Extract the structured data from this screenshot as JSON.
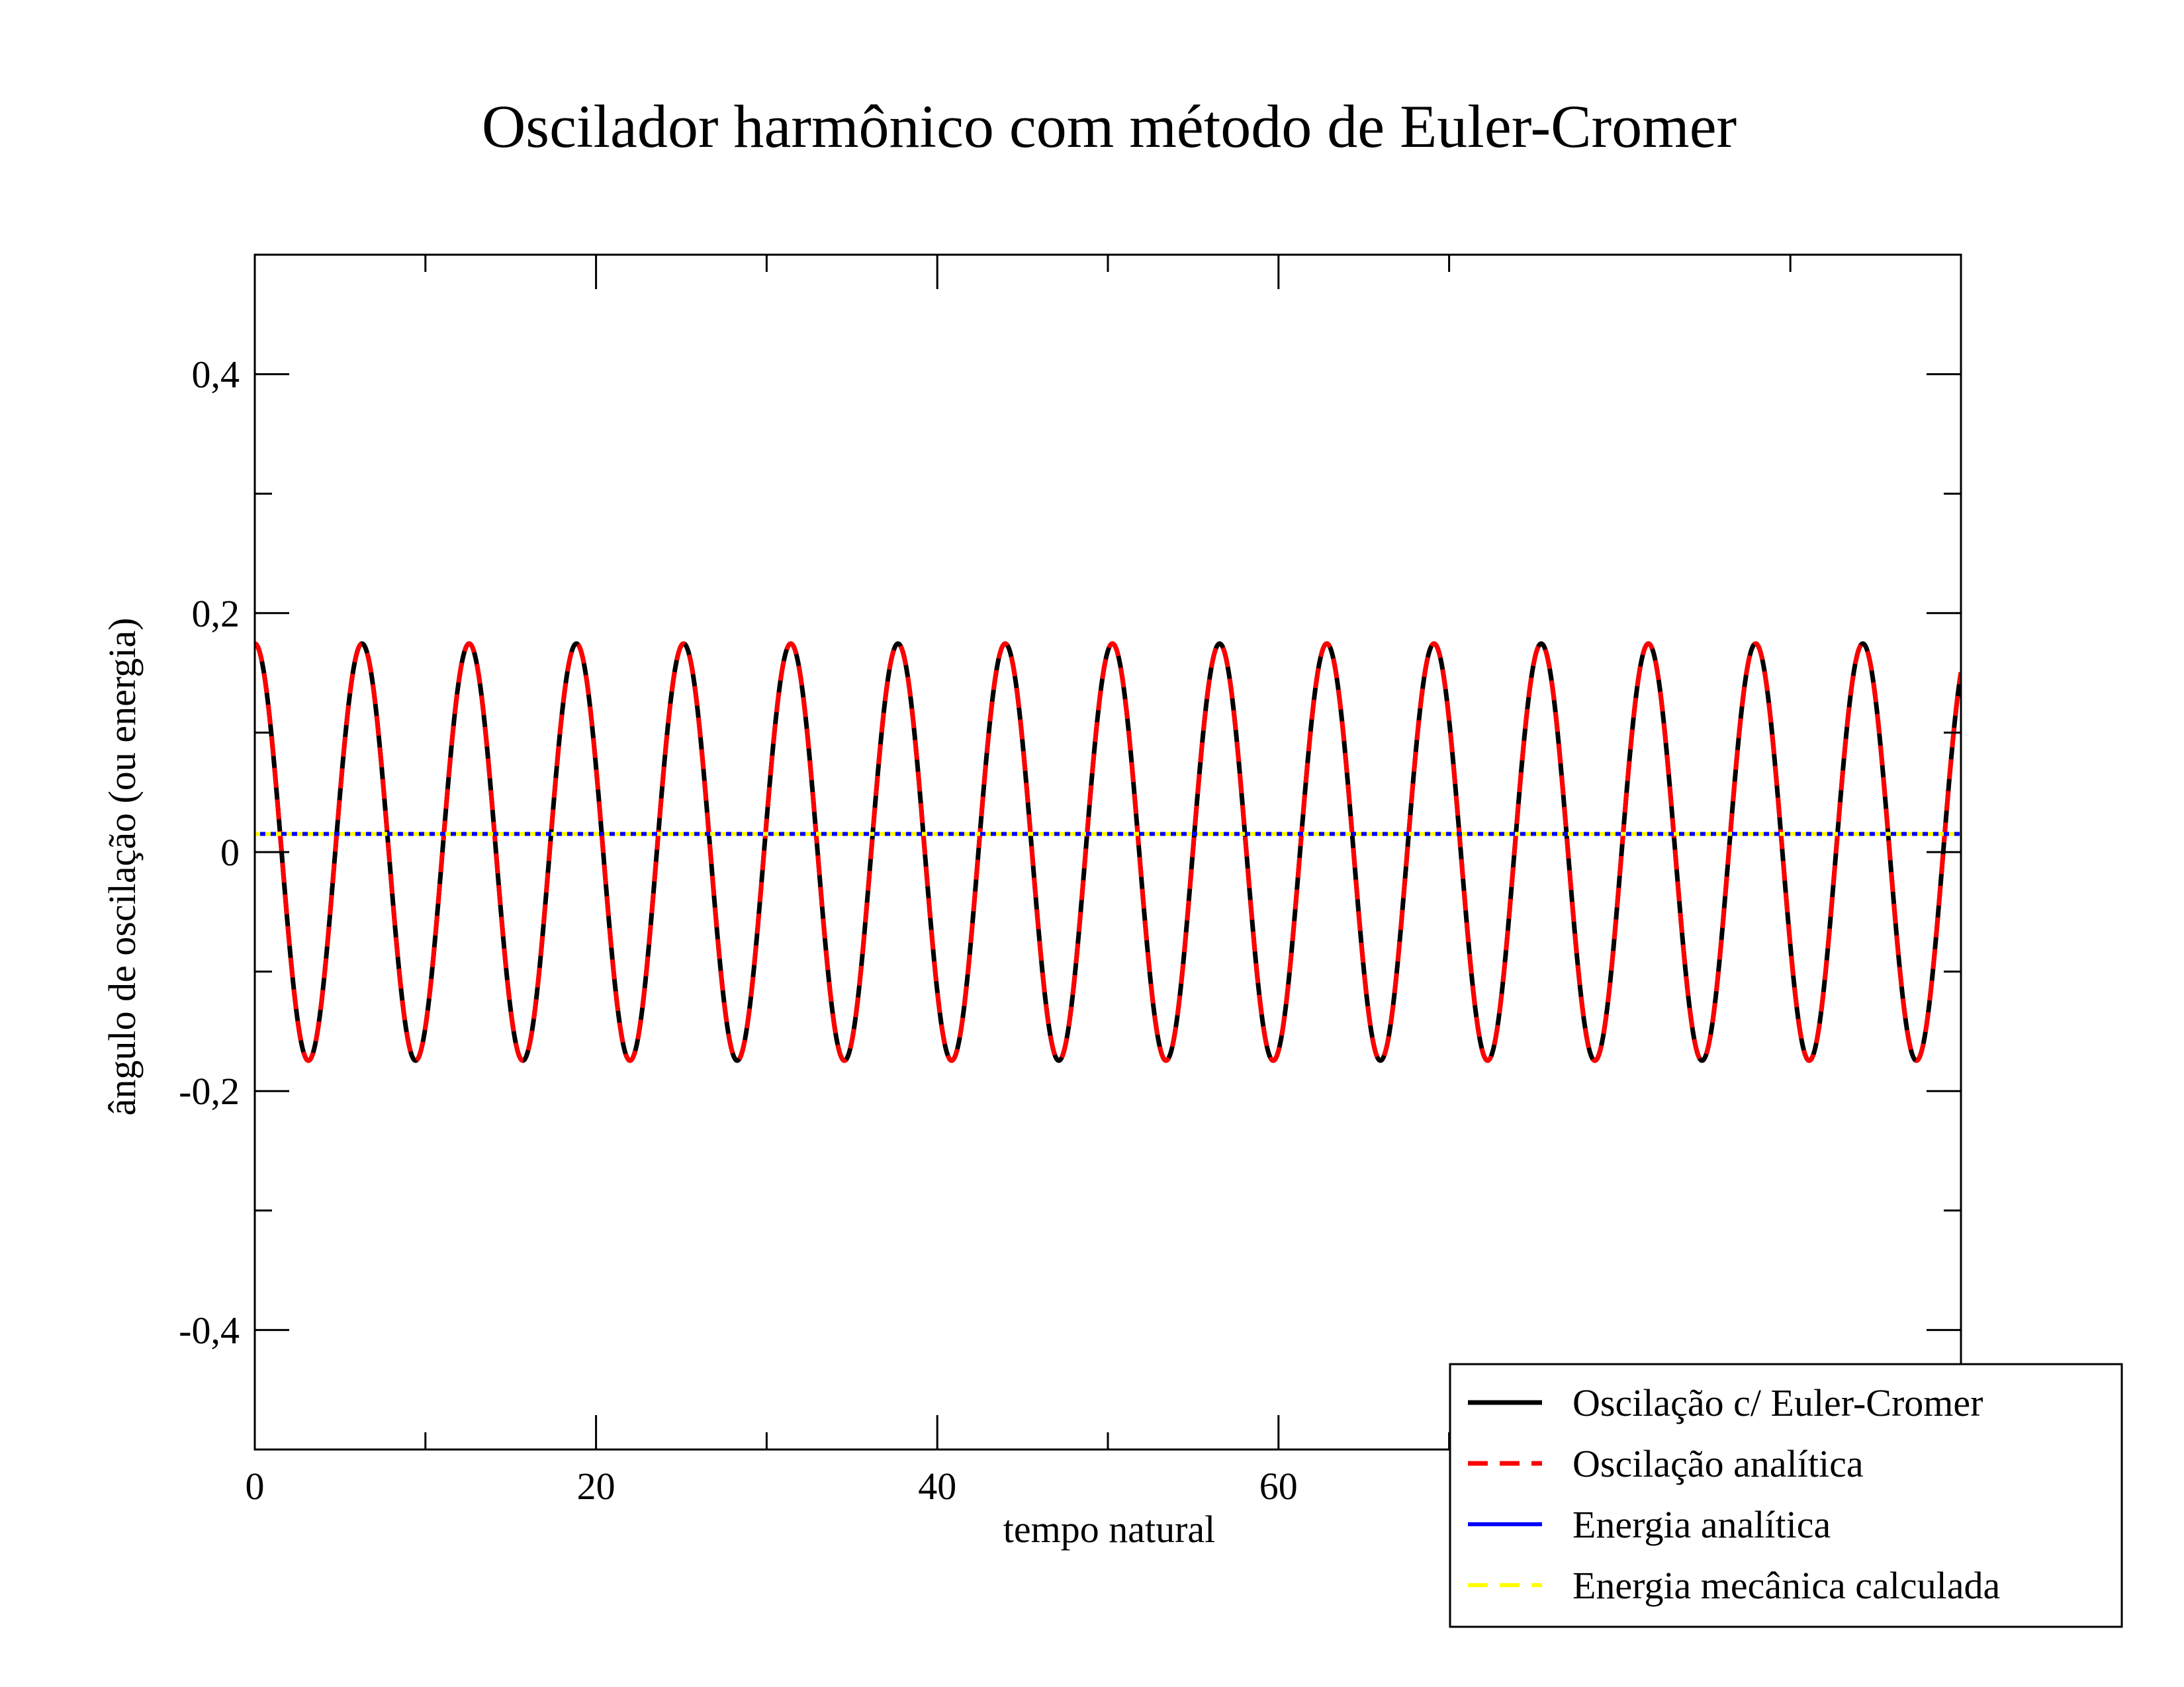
{
  "chart_data": {
    "type": "line",
    "title": "Oscilador harmônico com método de Euler-Cromer",
    "xlabel": "tempo natural",
    "ylabel": "ângulo de oscilação (ou energia)",
    "xlim": [
      0,
      100
    ],
    "ylim": [
      -0.5,
      0.5
    ],
    "x_ticks": [
      {
        "value": 0,
        "label": "0"
      },
      {
        "value": 20,
        "label": "20"
      },
      {
        "value": 40,
        "label": "40"
      },
      {
        "value": 60,
        "label": "60"
      }
    ],
    "x_minor_ticks": [
      10,
      30,
      50,
      70,
      90
    ],
    "y_ticks": [
      {
        "value": -0.4,
        "label": "-0,4"
      },
      {
        "value": -0.2,
        "label": "-0,2"
      },
      {
        "value": 0,
        "label": "0"
      },
      {
        "value": 0.2,
        "label": "0,2"
      },
      {
        "value": 0.4,
        "label": "0,4"
      }
    ],
    "y_minor_ticks": [
      -0.3,
      -0.1,
      0.1,
      0.3
    ],
    "grid": false,
    "legend_position": "bottom-right",
    "series": [
      {
        "name": "Oscilação c/ Euler-Cromer",
        "color": "#000000",
        "style": "solid",
        "function": "amplitude*cos(omega*t)",
        "amplitude": 0.1745,
        "omega": 1.0,
        "t_range": [
          0,
          100
        ]
      },
      {
        "name": "Oscilação analítica",
        "color": "#ff0000",
        "style": "dashed",
        "function": "amplitude*cos(omega*t)",
        "amplitude": 0.1745,
        "omega": 1.0,
        "t_range": [
          0,
          100
        ]
      },
      {
        "name": "Energia analítica",
        "color": "#0000ff",
        "style": "solid",
        "function": "constant",
        "value": 0.0152,
        "t_range": [
          0,
          100
        ]
      },
      {
        "name": "Energia mecânica calculada",
        "color": "#ffff00",
        "style": "dashed",
        "function": "constant",
        "value": 0.0152,
        "t_range": [
          0,
          100
        ]
      }
    ]
  }
}
